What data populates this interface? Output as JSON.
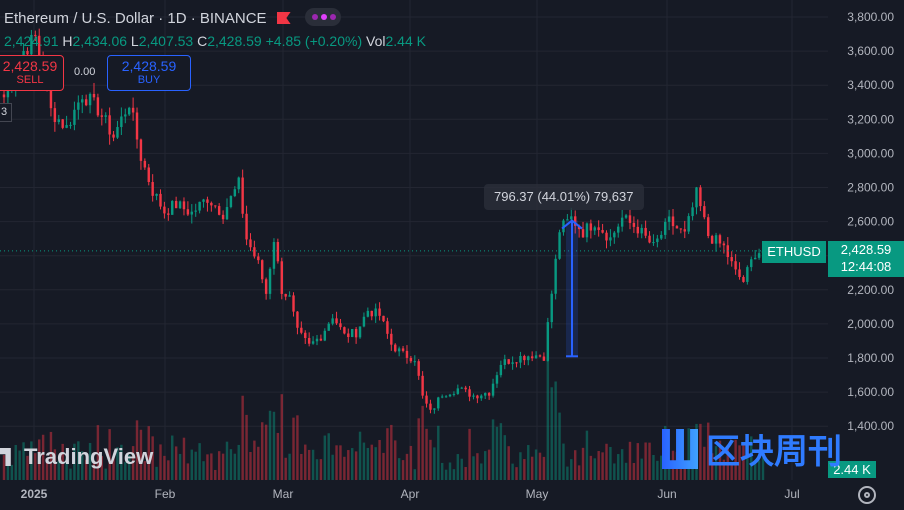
{
  "header": {
    "title": "Ethereum / U.S. Dollar · 1D · BINANCE",
    "open_value": "2,424.91",
    "high_key": "H",
    "high_value": "2,434.06",
    "low_key": "L",
    "low_value": "2,407.53",
    "close_key": "C",
    "close_value": "2,428.59",
    "change": "+4.85 (+0.20%)",
    "vol_key": "Vol",
    "vol_value": "2.44 K"
  },
  "trade": {
    "sell_price": "2,428.59",
    "sell_label": "SELL",
    "spread": "0.00",
    "buy_price": "2,428.59",
    "buy_label": "BUY",
    "indicator_count": "3"
  },
  "measure_tooltip": "796.37 (44.01%) 79,637",
  "last_price": {
    "ticker": "ETHUSD",
    "price": "2,428.59",
    "countdown": "12:44:08",
    "volume": "2.44 K"
  },
  "branding": {
    "tradingview": "TradingView",
    "watermark": "区块周刊"
  },
  "colors": {
    "bg": "#161a25",
    "up": "#089981",
    "down": "#f23645",
    "buy": "#2962ff",
    "grid": "#232632",
    "text": "#d1d4dc",
    "measure": "#2962ff"
  },
  "icons": {
    "settings": "gear-icon",
    "flag": "flag-icon",
    "indicators": "indicator-dots-icon"
  },
  "chart_data": {
    "type": "candlestick",
    "symbol": "ETHUSD",
    "interval": "1D",
    "y_ticks": [
      1400,
      1600,
      1800,
      2000,
      2200,
      2400,
      2600,
      2800,
      3000,
      3200,
      3400,
      3600,
      3800
    ],
    "y_tick_labels": [
      "1,400.00",
      "1,600.00",
      "1,800.00",
      "2,000.00",
      "2,200.00",
      "2,400.00",
      "2,600.00",
      "2,800.00",
      "3,000.00",
      "3,200.00",
      "3,400.00",
      "3,600.00",
      "3,800.00"
    ],
    "x_tick_labels": [
      "2025",
      "Feb",
      "Mar",
      "Apr",
      "May",
      "Jun",
      "Jul"
    ],
    "ylim": [
      1280,
      3900
    ],
    "grid": true,
    "last_close": 2428.59,
    "measure": {
      "from_price": 1810,
      "to_price": 2606,
      "change": 796.37,
      "percent": 44.01
    },
    "close_path": [
      {
        "day": 0,
        "close": 3330
      },
      {
        "day": 5,
        "close": 3600
      },
      {
        "day": 8,
        "close": 3680
      },
      {
        "day": 12,
        "close": 3250
      },
      {
        "day": 16,
        "close": 3150
      },
      {
        "day": 20,
        "close": 3350
      },
      {
        "day": 24,
        "close": 3260
      },
      {
        "day": 28,
        "close": 3100
      },
      {
        "day": 32,
        "close": 3300
      },
      {
        "day": 35,
        "close": 2980
      },
      {
        "day": 38,
        "close": 2780
      },
      {
        "day": 41,
        "close": 2660
      },
      {
        "day": 44,
        "close": 2700
      },
      {
        "day": 48,
        "close": 2650
      },
      {
        "day": 52,
        "close": 2740
      },
      {
        "day": 56,
        "close": 2650
      },
      {
        "day": 60,
        "close": 2820
      },
      {
        "day": 62,
        "close": 2500
      },
      {
        "day": 65,
        "close": 2350
      },
      {
        "day": 67,
        "close": 2180
      },
      {
        "day": 69,
        "close": 2500
      },
      {
        "day": 71,
        "close": 2200
      },
      {
        "day": 73,
        "close": 2150
      },
      {
        "day": 75,
        "close": 1950
      },
      {
        "day": 78,
        "close": 1870
      },
      {
        "day": 81,
        "close": 1930
      },
      {
        "day": 84,
        "close": 2050
      },
      {
        "day": 87,
        "close": 1930
      },
      {
        "day": 90,
        "close": 1950
      },
      {
        "day": 93,
        "close": 2080
      },
      {
        "day": 96,
        "close": 2050
      },
      {
        "day": 99,
        "close": 1880
      },
      {
        "day": 102,
        "close": 1820
      },
      {
        "day": 105,
        "close": 1800
      },
      {
        "day": 107,
        "close": 1570
      },
      {
        "day": 109,
        "close": 1480
      },
      {
        "day": 112,
        "close": 1590
      },
      {
        "day": 116,
        "close": 1620
      },
      {
        "day": 120,
        "close": 1580
      },
      {
        "day": 124,
        "close": 1600
      },
      {
        "day": 127,
        "close": 1770
      },
      {
        "day": 131,
        "close": 1800
      },
      {
        "day": 135,
        "close": 1820
      },
      {
        "day": 138,
        "close": 1810
      },
      {
        "day": 140,
        "close": 2180
      },
      {
        "day": 142,
        "close": 2550
      },
      {
        "day": 145,
        "close": 2620
      },
      {
        "day": 148,
        "close": 2540
      },
      {
        "day": 151,
        "close": 2600
      },
      {
        "day": 155,
        "close": 2500
      },
      {
        "day": 158,
        "close": 2620
      },
      {
        "day": 162,
        "close": 2560
      },
      {
        "day": 166,
        "close": 2450
      },
      {
        "day": 170,
        "close": 2600
      },
      {
        "day": 174,
        "close": 2520
      },
      {
        "day": 177,
        "close": 2760
      },
      {
        "day": 180,
        "close": 2520
      },
      {
        "day": 184,
        "close": 2450
      },
      {
        "day": 187,
        "close": 2300
      },
      {
        "day": 189,
        "close": 2250
      },
      {
        "day": 192,
        "close": 2420
      },
      {
        "day": 194,
        "close": 2428.59
      }
    ]
  }
}
